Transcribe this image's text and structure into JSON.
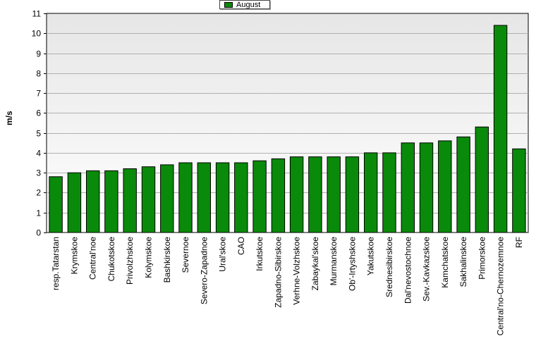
{
  "chart_data": {
    "type": "bar",
    "title": "",
    "xlabel": "",
    "ylabel": "m/s",
    "ylim": [
      0,
      11
    ],
    "yticks": [
      0,
      1,
      2,
      3,
      4,
      5,
      6,
      7,
      8,
      9,
      10,
      11
    ],
    "grid": true,
    "legend_position": "top-center",
    "bar_color": "#0a8a0a",
    "categories": [
      "resp.Tatarstan",
      "Krymskoe",
      "Central'noe",
      "Chukotskoe",
      "Privolzhskoe",
      "Kolymskoe",
      "Bashkirskoe",
      "Severnoe",
      "Severo-Zapadnoe",
      "Ural'skoe",
      "CAO",
      "Irkutskoe",
      "Zapadno-Sibirskoe",
      "Verhne-Volzhskoe",
      "Zabaykal'skoe",
      "Murmanskoe",
      "Ob'-Irtyshskoe",
      "Yakutskoe",
      "Srednesibirskoe",
      "Dal'nevostochnoe",
      "Sev.-Kavkazskoe",
      "Kamchatskoe",
      "Sakhalinskoe",
      "Primorskoe",
      "Central'no-Chernozemnoe",
      "RF"
    ],
    "series": [
      {
        "name": "August",
        "values": [
          2.8,
          3.0,
          3.1,
          3.1,
          3.2,
          3.3,
          3.4,
          3.5,
          3.5,
          3.5,
          3.5,
          3.6,
          3.7,
          3.8,
          3.8,
          3.8,
          3.8,
          4.0,
          4.0,
          4.5,
          4.5,
          4.6,
          4.8,
          5.3,
          10.4,
          4.2
        ]
      }
    ]
  }
}
